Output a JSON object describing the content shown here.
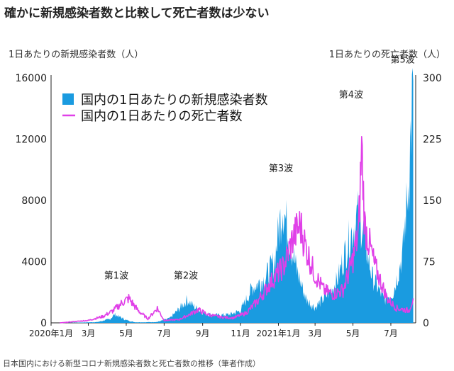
{
  "page": {
    "title": "確かに新規感染者数と比較して死亡者数は少ない",
    "caption": "日本国内における新型コロナ新規感染者数と死亡者数の推移（筆者作成）"
  },
  "chart_data": {
    "type": "area",
    "x_tick_labels": [
      "2020年1月",
      "3月",
      "5月",
      "7月",
      "9月",
      "11月",
      "2021年1月",
      "3月",
      "5月",
      "7月"
    ],
    "left_axis": {
      "label": "1日あたりの新規感染者数（人）",
      "ticks": [
        "0",
        "4000",
        "8000",
        "12000",
        "16000"
      ],
      "ylim": [
        0,
        16000
      ]
    },
    "right_axis": {
      "label": "1日あたりの死亡者数（人）",
      "ticks": [
        "0",
        "75",
        "150",
        "225",
        "300"
      ],
      "ylim": [
        0,
        300
      ]
    },
    "legend": {
      "placement": "top-left"
    },
    "colors": {
      "cases": "#1a9be0",
      "deaths": "#e040e8"
    },
    "series": [
      {
        "name": "国内の1日あたりの新規感染者数",
        "axis": "left",
        "style": "area",
        "points": [
          [
            "2020-01-15",
            0
          ],
          [
            "2020-02-15",
            20
          ],
          [
            "2020-03-15",
            50
          ],
          [
            "2020-04-05",
            250
          ],
          [
            "2020-04-12",
            550
          ],
          [
            "2020-04-20",
            400
          ],
          [
            "2020-05-01",
            180
          ],
          [
            "2020-05-15",
            40
          ],
          [
            "2020-06-01",
            40
          ],
          [
            "2020-06-20",
            60
          ],
          [
            "2020-07-10",
            300
          ],
          [
            "2020-07-25",
            900
          ],
          [
            "2020-08-07",
            1500
          ],
          [
            "2020-08-20",
            1000
          ],
          [
            "2020-09-05",
            600
          ],
          [
            "2020-09-25",
            500
          ],
          [
            "2020-10-15",
            550
          ],
          [
            "2020-11-01",
            800
          ],
          [
            "2020-11-20",
            2300
          ],
          [
            "2020-12-10",
            2900
          ],
          [
            "2020-12-25",
            3900
          ],
          [
            "2021-01-08",
            7800
          ],
          [
            "2021-01-16",
            6000
          ],
          [
            "2021-01-30",
            3500
          ],
          [
            "2021-02-15",
            1500
          ],
          [
            "2021-03-01",
            1000
          ],
          [
            "2021-03-20",
            1800
          ],
          [
            "2021-04-05",
            2700
          ],
          [
            "2021-04-20",
            4800
          ],
          [
            "2021-05-08",
            7000
          ],
          [
            "2021-05-15",
            6500
          ],
          [
            "2021-06-01",
            3000
          ],
          [
            "2021-06-20",
            1500
          ],
          [
            "2021-07-05",
            2000
          ],
          [
            "2021-07-20",
            4500
          ],
          [
            "2021-07-30",
            9500
          ],
          [
            "2021-08-06",
            15800
          ]
        ]
      },
      {
        "name": "国内の1日あたりの死亡者数",
        "axis": "right",
        "style": "line",
        "points": [
          [
            "2020-01-15",
            0
          ],
          [
            "2020-03-01",
            3
          ],
          [
            "2020-03-25",
            8
          ],
          [
            "2020-04-10",
            15
          ],
          [
            "2020-04-25",
            25
          ],
          [
            "2020-05-05",
            30
          ],
          [
            "2020-05-20",
            15
          ],
          [
            "2020-06-05",
            5
          ],
          [
            "2020-06-20",
            18
          ],
          [
            "2020-07-01",
            3
          ],
          [
            "2020-07-25",
            4
          ],
          [
            "2020-08-10",
            10
          ],
          [
            "2020-08-25",
            16
          ],
          [
            "2020-09-10",
            10
          ],
          [
            "2020-09-30",
            7
          ],
          [
            "2020-10-20",
            6
          ],
          [
            "2020-11-10",
            12
          ],
          [
            "2020-11-30",
            28
          ],
          [
            "2020-12-20",
            50
          ],
          [
            "2021-01-10",
            70
          ],
          [
            "2021-01-25",
            105
          ],
          [
            "2021-02-05",
            120
          ],
          [
            "2021-02-15",
            90
          ],
          [
            "2021-02-28",
            60
          ],
          [
            "2021-03-15",
            40
          ],
          [
            "2021-03-30",
            35
          ],
          [
            "2021-04-15",
            40
          ],
          [
            "2021-04-30",
            75
          ],
          [
            "2021-05-10",
            110
          ],
          [
            "2021-05-15",
            215
          ],
          [
            "2021-05-20",
            120
          ],
          [
            "2021-06-05",
            70
          ],
          [
            "2021-06-25",
            30
          ],
          [
            "2021-07-10",
            18
          ],
          [
            "2021-07-30",
            15
          ],
          [
            "2021-08-06",
            30
          ]
        ]
      }
    ],
    "annotations": [
      {
        "text": "第1波",
        "x": "2020-04-15",
        "y": 2900
      },
      {
        "text": "第2波",
        "x": "2020-08-05",
        "y": 2900
      },
      {
        "text": "第3波",
        "x": "2021-01-05",
        "y": 9900
      },
      {
        "text": "第4波",
        "x": "2021-04-28",
        "y": 14700
      },
      {
        "text": "第5波",
        "x": "2021-07-20",
        "y": 17000
      }
    ]
  }
}
